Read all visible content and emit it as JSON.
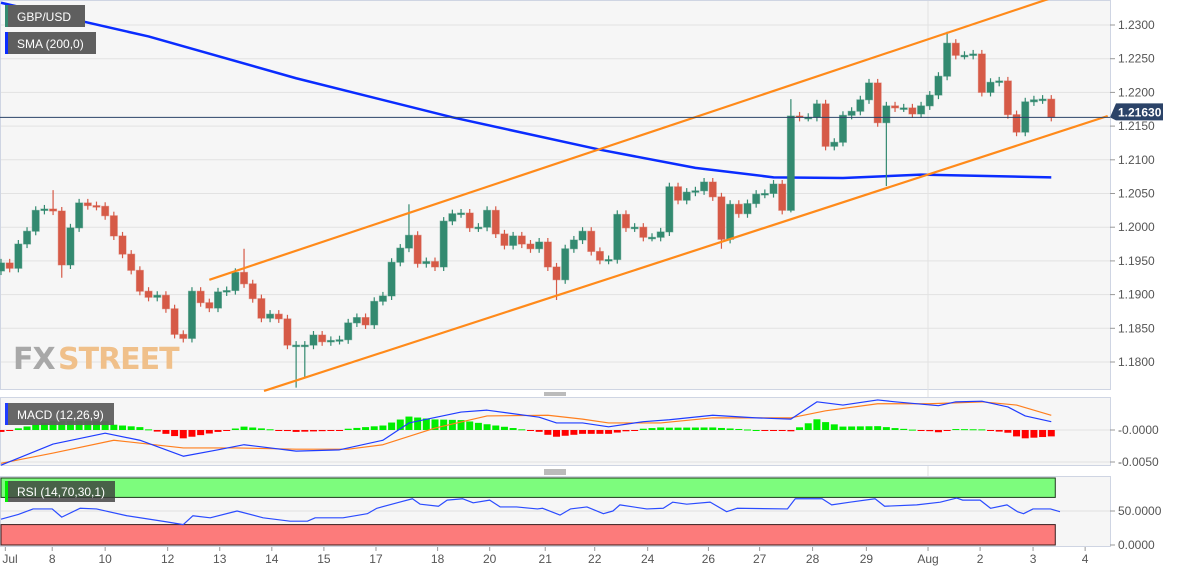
{
  "chart_data": {
    "type": "candlestick",
    "symbol": "GBP/USD",
    "last_price": "1.21630",
    "last_price_value": 1.2163,
    "price_axis": {
      "ticks": [
        "1.2300",
        "1.2250",
        "1.2200",
        "1.2150",
        "1.2100",
        "1.2050",
        "1.2000",
        "1.1950",
        "1.1900",
        "1.1850",
        "1.1800"
      ],
      "ylim": [
        1.1758,
        1.2337
      ]
    },
    "x_labels": [
      {
        "label": "Jul",
        "i": 0.5
      },
      {
        "label": "8",
        "i": 5.9
      },
      {
        "label": "10",
        "i": 12
      },
      {
        "label": "12",
        "i": 19.2
      },
      {
        "label": "13",
        "i": 25.2
      },
      {
        "label": "14",
        "i": 31.2
      },
      {
        "label": "15",
        "i": 37.2
      },
      {
        "label": "17",
        "i": 43.2
      },
      {
        "label": "18",
        "i": 50.3
      },
      {
        "label": "20",
        "i": 56.3
      },
      {
        "label": "21",
        "i": 62.7
      },
      {
        "label": "22",
        "i": 68.4
      },
      {
        "label": "24",
        "i": 74.5
      },
      {
        "label": "26",
        "i": 81.5
      },
      {
        "label": "27",
        "i": 87.4
      },
      {
        "label": "28",
        "i": 93.5
      },
      {
        "label": "29",
        "i": 99.7
      },
      {
        "label": "Aug",
        "i": 106.8
      },
      {
        "label": "2",
        "i": 112.8
      },
      {
        "label": "3",
        "i": 118.9
      },
      {
        "label": "4",
        "i": 124.9
      }
    ],
    "closes": [
      1.1947,
      1.1939,
      1.1975,
      1.1994,
      1.2025,
      1.2027,
      1.2024,
      1.1944,
      1.1999,
      1.2036,
      1.2032,
      1.2031,
      1.2017,
      1.1987,
      1.196,
      1.1936,
      1.1905,
      1.1896,
      1.1899,
      1.1879,
      1.1841,
      1.1835,
      1.1905,
      1.1888,
      1.188,
      1.1904,
      1.1906,
      1.1933,
      1.1916,
      1.1894,
      1.1865,
      1.1871,
      1.1864,
      1.1825,
      1.1825,
      1.1825,
      1.184,
      1.183,
      1.1832,
      1.1833,
      1.1858,
      1.1866,
      1.1855,
      1.189,
      1.1898,
      1.1948,
      1.1969,
      1.1988,
      1.1946,
      1.1949,
      1.1941,
      1.2009,
      1.202,
      1.2021,
      1.1999,
      1.2,
      1.2025,
      1.199,
      1.1973,
      1.1987,
      1.1975,
      1.1968,
      1.1978,
      1.1941,
      1.1922,
      1.1968,
      1.1981,
      1.1994,
      1.1964,
      1.1951,
      1.1952,
      1.2019,
      1.1999,
      1.2,
      1.1985,
      1.1985,
      1.1993,
      1.206,
      1.204,
      1.2052,
      1.2054,
      1.2067,
      1.2045,
      1.1982,
      1.2034,
      1.202,
      1.2035,
      1.2049,
      1.205,
      1.2064,
      1.2025,
      1.2165,
      1.2163,
      1.2163,
      1.2183,
      1.212,
      1.2126,
      1.2166,
      1.2172,
      1.2189,
      1.2214,
      1.2155,
      1.218,
      1.2177,
      1.2177,
      1.2168,
      1.218,
      1.2196,
      1.2224,
      1.2273,
      1.2255,
      1.2255,
      1.2257,
      1.22,
      1.2215,
      1.2217,
      1.2167,
      1.2141,
      1.2186,
      1.2189,
      1.219,
      1.2163
    ],
    "first_open": 1.1935,
    "wick_overrides": [
      {
        "i": 6,
        "high": 1.2055
      },
      {
        "i": 7,
        "low": 1.1925
      },
      {
        "i": 28,
        "high": 1.1968
      },
      {
        "i": 34,
        "low": 1.1762
      },
      {
        "i": 35,
        "low": 1.1777
      },
      {
        "i": 47,
        "high": 1.2034
      },
      {
        "i": 64,
        "low": 1.1892
      },
      {
        "i": 83,
        "low": 1.1968
      },
      {
        "i": 91,
        "low": 1.2022,
        "high": 1.219
      },
      {
        "i": 102,
        "low": 1.2061
      },
      {
        "i": 109,
        "high": 1.229
      }
    ],
    "sma": {
      "label": "SMA (200,0)",
      "color": "#0a2cff",
      "points": [
        [
          0,
          1.2333
        ],
        [
          17,
          1.2283
        ],
        [
          34,
          1.2221
        ],
        [
          52,
          1.2163
        ],
        [
          69,
          1.2115
        ],
        [
          80,
          1.2088
        ],
        [
          89,
          1.2074
        ],
        [
          97,
          1.2073
        ],
        [
          106,
          1.2078
        ],
        [
          121,
          1.2074
        ]
      ]
    },
    "channel": {
      "color": "#ff8a1a",
      "upper": [
        [
          24.0,
          1.1922
        ],
        [
          121.7,
          1.2343
        ]
      ],
      "lower": [
        [
          30.3,
          1.1757
        ],
        [
          127.5,
          1.2165
        ]
      ]
    },
    "macd": {
      "label": "MACD (12,26,9)",
      "ticks": [
        "-0.0000",
        "-0.0050"
      ],
      "macd_line": [
        [
          0,
          -0.0055
        ],
        [
          6,
          -0.0022
        ],
        [
          12,
          -0.0005
        ],
        [
          16,
          -0.0016
        ],
        [
          21,
          -0.0041
        ],
        [
          25,
          -0.0031
        ],
        [
          28,
          -0.0023
        ],
        [
          34,
          -0.0033
        ],
        [
          39,
          -0.0031
        ],
        [
          44,
          -0.0016
        ],
        [
          47,
          0.0011
        ],
        [
          53,
          0.0028
        ],
        [
          56,
          0.0031
        ],
        [
          62,
          0.002
        ],
        [
          64,
          0.0011
        ],
        [
          67,
          0.0011
        ],
        [
          70,
          0.0005
        ],
        [
          74,
          0.0013
        ],
        [
          77,
          0.0016
        ],
        [
          82,
          0.0023
        ],
        [
          87,
          0.0019
        ],
        [
          91,
          0.0017
        ],
        [
          94,
          0.0044
        ],
        [
          97,
          0.0039
        ],
        [
          101,
          0.0047
        ],
        [
          103,
          0.0044
        ],
        [
          108,
          0.0038
        ],
        [
          110,
          0.0044
        ],
        [
          113,
          0.0045
        ],
        [
          116,
          0.0036
        ],
        [
          118,
          0.0022
        ],
        [
          121,
          0.0013
        ]
      ],
      "signal_line": [
        [
          0,
          -0.0052
        ],
        [
          6,
          -0.0036
        ],
        [
          13,
          -0.0016
        ],
        [
          21,
          -0.0028
        ],
        [
          27,
          -0.0028
        ],
        [
          34,
          -0.003
        ],
        [
          40,
          -0.003
        ],
        [
          44,
          -0.0023
        ],
        [
          50,
          0.0003
        ],
        [
          56,
          0.0022
        ],
        [
          63,
          0.0023
        ],
        [
          67,
          0.0017
        ],
        [
          70,
          0.0011
        ],
        [
          76,
          0.0011
        ],
        [
          82,
          0.0019
        ],
        [
          87,
          0.0019
        ],
        [
          91,
          0.0019
        ],
        [
          95,
          0.003
        ],
        [
          101,
          0.0041
        ],
        [
          107,
          0.0041
        ],
        [
          113,
          0.0044
        ],
        [
          117,
          0.0039
        ],
        [
          121,
          0.0023
        ]
      ]
    },
    "rsi": {
      "label": "RSI (14,70,30,1)",
      "ticks": [
        "50.0000",
        "0.0000"
      ],
      "overbought": 70,
      "oversold": 30,
      "points": [
        [
          0,
          38
        ],
        [
          2,
          45
        ],
        [
          3.7,
          53
        ],
        [
          5.9,
          53
        ],
        [
          7,
          41
        ],
        [
          9.1,
          54
        ],
        [
          11,
          53
        ],
        [
          14.5,
          43
        ],
        [
          19.1,
          34
        ],
        [
          21,
          30
        ],
        [
          22.1,
          43
        ],
        [
          24.1,
          40
        ],
        [
          27.2,
          50
        ],
        [
          30.2,
          40
        ],
        [
          33.3,
          35
        ],
        [
          35.3,
          35
        ],
        [
          36.2,
          40
        ],
        [
          39.4,
          40
        ],
        [
          42.2,
          46
        ],
        [
          43.3,
          54
        ],
        [
          45.9,
          63
        ],
        [
          47.4,
          68
        ],
        [
          48.3,
          60
        ],
        [
          50.4,
          57
        ],
        [
          51.4,
          66
        ],
        [
          53.2,
          68
        ],
        [
          54.4,
          62
        ],
        [
          56.3,
          66
        ],
        [
          57.5,
          56
        ],
        [
          59.4,
          56
        ],
        [
          61.8,
          53
        ],
        [
          62.4,
          54
        ],
        [
          64.4,
          44
        ],
        [
          65.6,
          53
        ],
        [
          67.5,
          56
        ],
        [
          69.4,
          46
        ],
        [
          70.5,
          50
        ],
        [
          71.3,
          59
        ],
        [
          74.4,
          53
        ],
        [
          76.3,
          54
        ],
        [
          77.4,
          63
        ],
        [
          79,
          60
        ],
        [
          81.7,
          63
        ],
        [
          83.6,
          49
        ],
        [
          84.8,
          54
        ],
        [
          90.6,
          53
        ],
        [
          91.5,
          68
        ],
        [
          94.6,
          68
        ],
        [
          95.7,
          59
        ],
        [
          97.8,
          63
        ],
        [
          100.7,
          68
        ],
        [
          101.8,
          57
        ],
        [
          105.5,
          59
        ],
        [
          108.2,
          63
        ],
        [
          110.1,
          69
        ],
        [
          110.8,
          66
        ],
        [
          112.8,
          66
        ],
        [
          114,
          54
        ],
        [
          115.9,
          59
        ],
        [
          117.1,
          49
        ],
        [
          117.8,
          46
        ],
        [
          118.9,
          53
        ],
        [
          120.9,
          53
        ],
        [
          122,
          49
        ]
      ]
    },
    "colors": {
      "up": "#338a70",
      "down": "#d65a47",
      "price_tag": "#2b4368",
      "macd_line": "#1f3cff",
      "signal_line": "#ff7f1e",
      "hist_up": "#00ee00",
      "hist_down": "#ff0000",
      "rsi_line": "#2b4cff",
      "ob_band": "#7dfc7d",
      "os_band": "#fc7b7b"
    }
  },
  "watermark": {
    "part1": "FX",
    "part2": "STREET"
  }
}
